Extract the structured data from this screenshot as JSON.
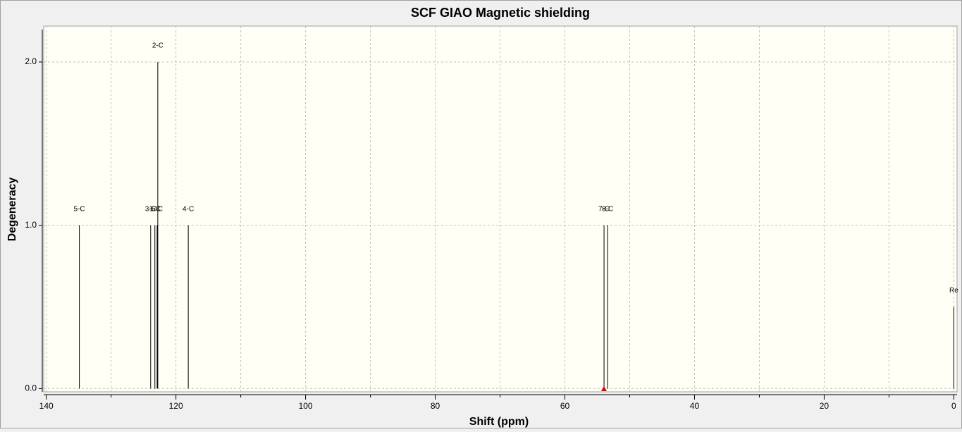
{
  "chart_data": {
    "type": "stick",
    "title": "SCF GIAO Magnetic shielding",
    "xlabel": "Shift (ppm)",
    "ylabel": "Degeneracy",
    "x": [
      134.9,
      123.9,
      123.25,
      122.9,
      122.8,
      118.1,
      53.96,
      53.4,
      0
    ],
    "values": [
      1,
      1,
      1,
      1,
      2,
      1,
      1,
      1,
      0.5
    ],
    "labels": [
      "5-C",
      "3-C",
      "1-C",
      "6-C",
      "2-C",
      "4-C",
      "7-C",
      "8-C",
      "Re"
    ],
    "color": "#000000",
    "xlim": [
      140.4,
      -0.5
    ],
    "xticks": [
      140,
      120,
      100,
      80,
      60,
      40,
      20,
      0
    ],
    "xminorticks": [
      130,
      110,
      90,
      70,
      50,
      30,
      10
    ],
    "ylim": [
      -0.02,
      2.22
    ],
    "yticks": [
      {
        "value": 0,
        "label": "0.0"
      },
      {
        "value": 1,
        "label": "1.0"
      },
      {
        "value": 2,
        "label": "2.0"
      }
    ],
    "grid": true
  }
}
